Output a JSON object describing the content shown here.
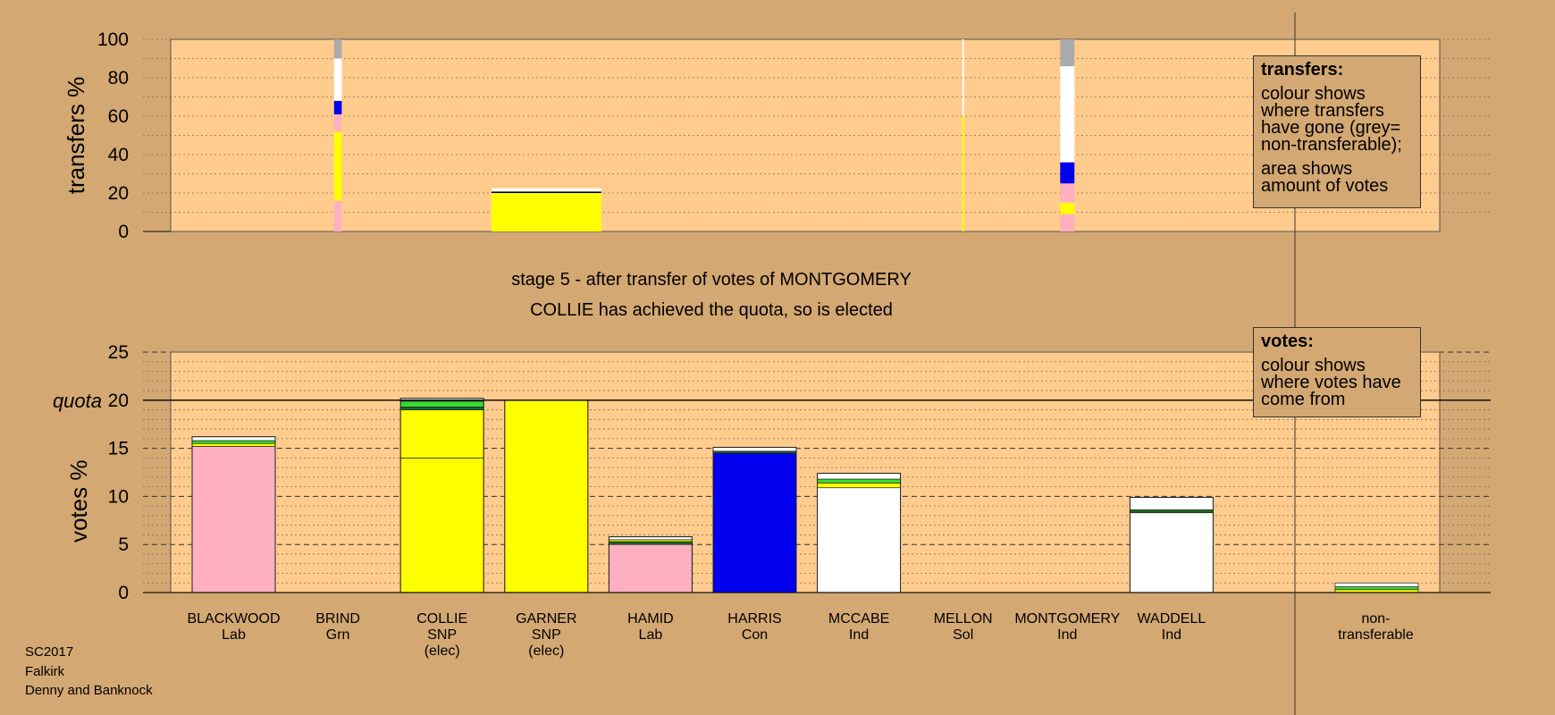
{
  "chart_data": {
    "type": "bar",
    "title": "stage 5 - after transfer of votes of MONTGOMERY",
    "subtitle": "COLLIE has achieved the quota, so is elected",
    "transfers_panel": {
      "ylabel": "transfers %",
      "ylim": [
        0,
        100
      ],
      "yticks": [
        "0",
        "20",
        "40",
        "60",
        "80",
        "100"
      ],
      "columns": [
        {
          "candidate": "BRIND",
          "width_frac": 0.07,
          "segments": [
            {
              "color": "#FFB0C0",
              "from": 0,
              "to": 16
            },
            {
              "color": "#FFFF00",
              "from": 16,
              "to": 52
            },
            {
              "color": "#FFB0C0",
              "from": 52,
              "to": 61
            },
            {
              "color": "#0000EE",
              "from": 61,
              "to": 68
            },
            {
              "color": "#FFFFFF",
              "from": 68,
              "to": 90
            },
            {
              "color": "#AAAAAA",
              "from": 90,
              "to": 100
            }
          ]
        },
        {
          "candidate": "GARNER",
          "width_frac": 1.0,
          "segments": [
            {
              "color": "#FFFF00",
              "from": 0,
              "to": 20
            },
            {
              "color": "#000000",
              "from": 20,
              "to": 20.8
            },
            {
              "color": "#FFFFFF",
              "from": 20.8,
              "to": 22.5
            }
          ]
        },
        {
          "candidate": "MELLON",
          "width_frac": 0.015,
          "segments": [
            {
              "color": "#FFFF00",
              "from": 0,
              "to": 60
            },
            {
              "color": "#FFFFFF",
              "from": 60,
              "to": 100
            }
          ]
        },
        {
          "candidate": "MONTGOMERY",
          "width_frac": 0.13,
          "segments": [
            {
              "color": "#FFB0C0",
              "from": 0,
              "to": 9
            },
            {
              "color": "#FFFF00",
              "from": 9,
              "to": 15
            },
            {
              "color": "#FFB0C0",
              "from": 15,
              "to": 25
            },
            {
              "color": "#0000EE",
              "from": 25,
              "to": 36
            },
            {
              "color": "#FFFFFF",
              "from": 36,
              "to": 86
            },
            {
              "color": "#AAAAAA",
              "from": 86,
              "to": 100
            }
          ]
        }
      ]
    },
    "votes_panel": {
      "ylabel": "votes %",
      "ylim": [
        0,
        25
      ],
      "yticks": [
        "0",
        "5",
        "10",
        "15",
        "20",
        "25"
      ],
      "quota": 20,
      "quota_label": "quota",
      "bars": [
        {
          "name": "BLACKWOOD",
          "party": "Lab",
          "status": "",
          "segments": [
            {
              "color": "#FFB0C0",
              "from": 0,
              "to": 15.2
            },
            {
              "color": "#FFFF00",
              "from": 15.2,
              "to": 15.5
            },
            {
              "color": "#33DD33",
              "from": 15.5,
              "to": 15.8
            },
            {
              "color": "#FFFFFF",
              "from": 15.8,
              "to": 16.2
            }
          ]
        },
        {
          "name": "BRIND",
          "party": "Grn",
          "status": "",
          "segments": []
        },
        {
          "name": "COLLIE",
          "party": "SNP",
          "status": "(elec)",
          "segments": [
            {
              "color": "#FFFF00",
              "from": 0,
              "to": 14
            },
            {
              "color": "#FFFF00",
              "from": 14,
              "to": 19
            },
            {
              "color": "#1A6A1A",
              "from": 19,
              "to": 19.3
            },
            {
              "color": "#33DD33",
              "from": 19.3,
              "to": 19.9
            },
            {
              "color": "#FFFFFF",
              "from": 19.9,
              "to": 20.2
            }
          ]
        },
        {
          "name": "GARNER",
          "party": "SNP",
          "status": "(elec)",
          "segments": [
            {
              "color": "#FFFF00",
              "from": 0,
              "to": 20
            }
          ]
        },
        {
          "name": "HAMID",
          "party": "Lab",
          "status": "",
          "segments": [
            {
              "color": "#FFB0C0",
              "from": 0,
              "to": 5
            },
            {
              "color": "#1A6A1A",
              "from": 5,
              "to": 5.3
            },
            {
              "color": "#FFFF00",
              "from": 5.3,
              "to": 5.5
            },
            {
              "color": "#FFFFFF",
              "from": 5.5,
              "to": 5.8
            }
          ]
        },
        {
          "name": "HARRIS",
          "party": "Con",
          "status": "",
          "segments": [
            {
              "color": "#0000EE",
              "from": 0,
              "to": 14.5
            },
            {
              "color": "#1A6A1A",
              "from": 14.5,
              "to": 14.7
            },
            {
              "color": "#FFFFFF",
              "from": 14.7,
              "to": 15.1
            }
          ]
        },
        {
          "name": "MCCABE",
          "party": "Ind",
          "status": "",
          "segments": [
            {
              "color": "#FFFFFF",
              "from": 0,
              "to": 10.9
            },
            {
              "color": "#FFFF00",
              "from": 10.9,
              "to": 11.4
            },
            {
              "color": "#33DD33",
              "from": 11.4,
              "to": 11.8
            },
            {
              "color": "#FFFFFF",
              "from": 11.8,
              "to": 12.4
            }
          ]
        },
        {
          "name": "MELLON",
          "party": "Sol",
          "status": "",
          "segments": []
        },
        {
          "name": "MONTGOMERY",
          "party": "Ind",
          "status": "",
          "segments": []
        },
        {
          "name": "WADDELL",
          "party": "Ind",
          "status": "",
          "segments": [
            {
              "color": "#FFFFFF",
              "from": 0,
              "to": 8.3
            },
            {
              "color": "#1A6A1A",
              "from": 8.3,
              "to": 8.6
            },
            {
              "color": "#FFFFFF",
              "from": 8.6,
              "to": 9.9
            }
          ]
        }
      ],
      "nontransferable": {
        "label_lines": [
          "non-",
          "transferable"
        ],
        "segments": [
          {
            "color": "#FFFF00",
            "from": 0,
            "to": 0.3
          },
          {
            "color": "#33DD33",
            "from": 0.3,
            "to": 0.6
          },
          {
            "color": "#FFFFFF",
            "from": 0.6,
            "to": 1.0
          }
        ]
      }
    }
  },
  "legend_transfers": {
    "title": "transfers:",
    "text1": "colour shows where transfers have gone (grey= non-transferable);",
    "text2": "area shows amount of votes"
  },
  "legend_votes": {
    "title": "votes:",
    "text1": "colour shows where votes have come from"
  },
  "footer": {
    "line1": "SC2017",
    "line2": "Falkirk",
    "line3": "Denny and Banknock"
  }
}
